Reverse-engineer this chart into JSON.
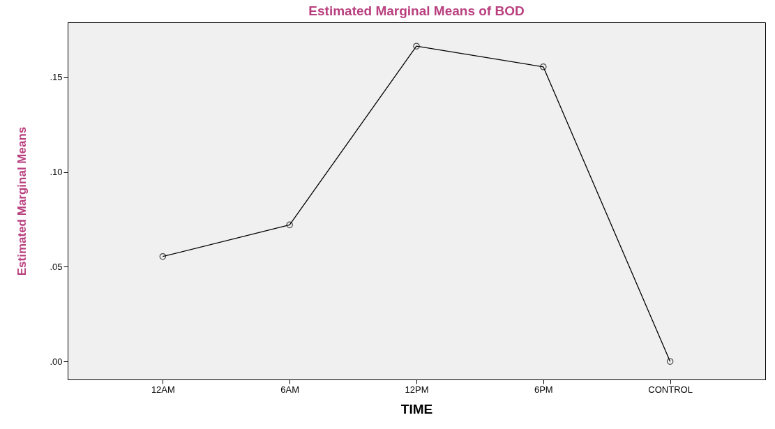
{
  "chart_data": {
    "type": "line",
    "title": "Estimated Marginal Means of BOD",
    "xlabel": "TIME",
    "ylabel": "Estimated Marginal Means",
    "categories": [
      "12AM",
      "6AM",
      "12PM",
      "6PM",
      "CONTROL"
    ],
    "series": [
      {
        "color": "#000000",
        "values": [
          0.0554,
          0.0721,
          0.1664,
          0.1555,
          0.0
        ]
      }
    ],
    "ylim": [
      -0.0095,
      0.179
    ],
    "yticks": [
      {
        "value": 0,
        "label": ".00"
      },
      {
        "value": 0.05,
        "label": ".05"
      },
      {
        "value": 0.1,
        "label": ".10"
      },
      {
        "value": 0.15,
        "label": ".15"
      }
    ],
    "marker": "circle",
    "line_style": "solid",
    "grid": false
  }
}
